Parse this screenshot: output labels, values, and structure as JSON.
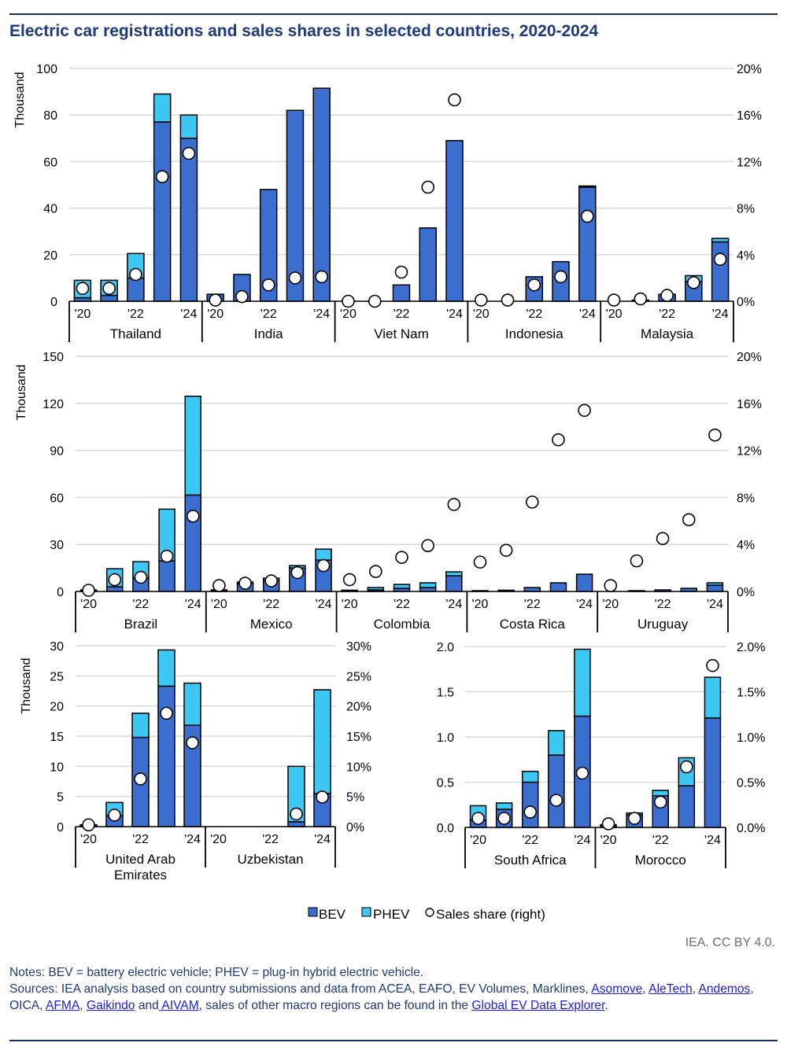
{
  "title": "Electric car registrations and sales shares in selected countries, 2020-2024",
  "credit": "IEA. CC BY 4.0.",
  "notes": "Notes: BEV = battery electric vehicle; PHEV = plug-in hybrid electric vehicle.",
  "sources": {
    "prefix": "Sources: IEA analysis based on country submissions and data from ACEA, EAFO, EV Volumes, Marklines, ",
    "link_asomove": "Asomove",
    "sep1": ",",
    "link_aletech": "AleTech",
    "sep2": ", ",
    "link_andemos": "Andemos",
    "sep3": ", OICA, ",
    "link_afma": "AFMA",
    "sep4": ", ",
    "link_gaikindo": "Gaikindo",
    "sep5": " and",
    "link_aivam": " AIVAM,",
    "sep6": " sales of other macro regions can be found in the ",
    "link_explorer": "Global EV Data Explorer",
    "suffix": "."
  },
  "colors": {
    "bev": "#3a6fd0",
    "phev": "#3cc8f2",
    "grid": "#d9d9d9",
    "text": "#000000"
  },
  "chart_data": [
    {
      "type": "bar",
      "stacked": true,
      "ylabel": "Thousand",
      "ylim": [
        0,
        100
      ],
      "yticks": [
        "0",
        "20",
        "40",
        "60",
        "80",
        "100"
      ],
      "y2lim": [
        0,
        20
      ],
      "y2ticks": [
        "0%",
        "4%",
        "8%",
        "12%",
        "16%",
        "20%"
      ],
      "x_tick_labels": [
        "'20",
        "",
        "'22",
        "",
        "'24"
      ],
      "years": [
        2020,
        2021,
        2022,
        2023,
        2024
      ],
      "groups": [
        {
          "name": "Thailand",
          "bev": [
            1.5,
            2.5,
            10,
            77,
            70
          ],
          "phev": [
            7.5,
            6.5,
            10.5,
            12,
            10
          ],
          "share": [
            1.1,
            1.1,
            2.3,
            10.7,
            12.7
          ]
        },
        {
          "name": "India",
          "bev": [
            3,
            11.5,
            48,
            82,
            91.5
          ],
          "phev": [
            0,
            0,
            0,
            0,
            0
          ],
          "share": [
            0.1,
            0.4,
            1.4,
            2.0,
            2.1
          ]
        },
        {
          "name": "Viet Nam",
          "bev": [
            0,
            0,
            7,
            31.5,
            69
          ],
          "phev": [
            0,
            0,
            0,
            0,
            0
          ],
          "share": [
            0,
            0,
            2.5,
            9.8,
            17.3
          ]
        },
        {
          "name": "Indonesia",
          "bev": [
            0,
            0,
            10.5,
            17,
            49
          ],
          "phev": [
            0,
            0,
            0,
            0,
            0.5
          ],
          "share": [
            0.1,
            0.1,
            1.4,
            2.1,
            7.3
          ]
        },
        {
          "name": "Malaysia",
          "bev": [
            0,
            0.5,
            3,
            8.5,
            25.5
          ],
          "phev": [
            0,
            0,
            0,
            2.5,
            1.5
          ],
          "share": [
            0.1,
            0.2,
            0.5,
            1.6,
            3.6
          ]
        }
      ],
      "legend": [
        "BEV",
        "PHEV",
        "Sales share (right)"
      ],
      "legend_position": "bottom"
    },
    {
      "type": "bar",
      "stacked": true,
      "ylabel": "Thousand",
      "ylim": [
        0,
        150
      ],
      "yticks": [
        "0",
        "30",
        "60",
        "90",
        "120",
        "150"
      ],
      "y2lim": [
        0,
        20
      ],
      "y2ticks": [
        "0%",
        "4%",
        "8%",
        "12%",
        "16%",
        "20%"
      ],
      "x_tick_labels": [
        "'20",
        "",
        "'22",
        "",
        "'24"
      ],
      "years": [
        2020,
        2021,
        2022,
        2023,
        2024
      ],
      "groups": [
        {
          "name": "Brazil",
          "bev": [
            0.5,
            3,
            8.5,
            19.5,
            61.5
          ],
          "phev": [
            0.5,
            11.5,
            10.5,
            33,
            63
          ],
          "share": [
            0.1,
            1.0,
            1.2,
            3.0,
            6.4
          ]
        },
        {
          "name": "Mexico",
          "bev": [
            0.5,
            5,
            7,
            15,
            20
          ],
          "phev": [
            0.5,
            1,
            1.5,
            1.5,
            7
          ],
          "share": [
            0.5,
            0.7,
            0.9,
            1.6,
            2.2
          ]
        },
        {
          "name": "Colombia",
          "bev": [
            0.5,
            1,
            2,
            2.5,
            10
          ],
          "phev": [
            0.3,
            1.5,
            2.5,
            3,
            2.5
          ],
          "share": [
            1.0,
            1.7,
            2.9,
            3.9,
            7.4
          ]
        },
        {
          "name": "Costa Rica",
          "bev": [
            0.5,
            0.8,
            2.5,
            5.5,
            11
          ],
          "phev": [
            0,
            0,
            0,
            0,
            0
          ],
          "share": [
            2.5,
            3.5,
            7.6,
            12.9,
            15.4
          ]
        },
        {
          "name": "Uruguay",
          "bev": [
            0,
            0.5,
            1,
            2,
            4
          ],
          "phev": [
            0,
            0,
            0,
            0,
            1.5
          ],
          "share": [
            0.5,
            2.6,
            4.5,
            6.1,
            13.3
          ]
        }
      ],
      "legend": [
        "BEV",
        "PHEV",
        "Sales share (right)"
      ],
      "legend_position": "bottom"
    },
    {
      "type": "bar",
      "stacked": true,
      "ylabel": "Thousand",
      "ylim": [
        0,
        30
      ],
      "yticks": [
        "0",
        "5",
        "10",
        "15",
        "20",
        "25",
        "30"
      ],
      "y2lim": [
        0,
        30
      ],
      "y2ticks": [
        "0%",
        "5%",
        "10%",
        "15%",
        "20%",
        "25%",
        "30%"
      ],
      "x_tick_labels": [
        "'20",
        "",
        "'22",
        "",
        "'24"
      ],
      "years": [
        2020,
        2021,
        2022,
        2023,
        2024
      ],
      "groups": [
        {
          "name": "United Arab\nEmirates",
          "bev": [
            0.2,
            1.8,
            14.8,
            23.3,
            16.8
          ],
          "phev": [
            0.1,
            2.2,
            4,
            6,
            7
          ],
          "share": [
            0.3,
            1.9,
            7.9,
            18.8,
            13.9
          ]
        },
        {
          "name": "Uzbekistan",
          "bev": [
            0,
            0,
            0,
            0.8,
            5.5
          ],
          "phev": [
            0,
            0,
            0,
            9.2,
            17.2
          ],
          "share": [
            null,
            null,
            null,
            2.1,
            4.9
          ]
        }
      ],
      "legend": [
        "BEV",
        "PHEV",
        "Sales share (right)"
      ],
      "legend_position": "bottom"
    },
    {
      "type": "bar",
      "stacked": true,
      "ylabel": "",
      "ylim": [
        0,
        2
      ],
      "yticks": [
        "0.0",
        "0.5",
        "1.0",
        "1.5",
        "2.0"
      ],
      "y2lim": [
        0,
        2
      ],
      "y2ticks": [
        "0.0%",
        "0.5%",
        "1.0%",
        "1.5%",
        "2.0%"
      ],
      "x_tick_labels": [
        "'20",
        "",
        "'22",
        "",
        "'24"
      ],
      "years": [
        2020,
        2021,
        2022,
        2023,
        2024
      ],
      "groups": [
        {
          "name": "South Africa",
          "bev": [
            0.08,
            0.2,
            0.5,
            0.8,
            1.23
          ],
          "phev": [
            0.16,
            0.07,
            0.12,
            0.27,
            0.74
          ],
          "share": [
            0.1,
            0.1,
            0.17,
            0.3,
            0.6
          ]
        },
        {
          "name": "Morocco",
          "bev": [
            0.02,
            0.14,
            0.35,
            0.46,
            1.21
          ],
          "phev": [
            0.01,
            0.02,
            0.06,
            0.31,
            0.45
          ],
          "share": [
            0.04,
            0.1,
            0.28,
            0.67,
            1.79
          ]
        }
      ],
      "legend": [
        "BEV",
        "PHEV",
        "Sales share (right)"
      ],
      "legend_position": "bottom"
    }
  ]
}
